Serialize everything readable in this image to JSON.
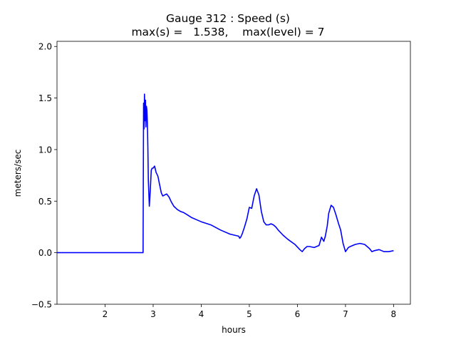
{
  "chart_data": {
    "type": "line",
    "title_line1": "Gauge 312 : Speed (s)",
    "title_line2": "max(s) =   1.538,    max(level) = 7",
    "xlabel": "hours",
    "ylabel": "meters/sec",
    "xlim": [
      1.0,
      8.35
    ],
    "ylim": [
      -0.5,
      2.05
    ],
    "xticks": [
      2,
      3,
      4,
      5,
      6,
      7,
      8
    ],
    "yticks": [
      -0.5,
      0.0,
      0.5,
      1.0,
      1.5,
      2.0
    ],
    "ytick_labels": [
      "−0.5",
      "0.0",
      "0.5",
      "1.0",
      "1.5",
      "2.0"
    ],
    "grid": false,
    "series": [
      {
        "color": "#0000ff",
        "x": [
          1.0,
          2.79,
          2.8,
          2.81,
          2.82,
          2.83,
          2.84,
          2.85,
          2.86,
          2.87,
          2.88,
          2.89,
          2.9,
          2.92,
          2.94,
          2.96,
          2.98,
          3.0,
          3.03,
          3.06,
          3.08,
          3.1,
          3.13,
          3.17,
          3.2,
          3.24,
          3.28,
          3.33,
          3.38,
          3.43,
          3.5,
          3.57,
          3.63,
          3.7,
          3.8,
          3.9,
          4.0,
          4.2,
          4.4,
          4.6,
          4.78,
          4.8,
          4.82,
          4.85,
          4.9,
          4.95,
          5.0,
          5.05,
          5.1,
          5.15,
          5.2,
          5.25,
          5.3,
          5.35,
          5.4,
          5.45,
          5.5,
          5.55,
          5.6,
          5.7,
          5.8,
          5.95,
          6.05,
          6.1,
          6.15,
          6.2,
          6.25,
          6.35,
          6.45,
          6.5,
          6.55,
          6.58,
          6.62,
          6.65,
          6.7,
          6.75,
          6.8,
          6.85,
          6.9,
          6.95,
          7.0,
          7.03,
          7.06,
          7.1,
          7.2,
          7.3,
          7.4,
          7.5,
          7.55,
          7.6,
          7.7,
          7.8,
          7.9,
          8.0
        ],
        "y": [
          0.0,
          0.0,
          1.45,
          1.2,
          1.538,
          1.28,
          1.48,
          1.22,
          1.42,
          1.38,
          1.25,
          1.03,
          0.7,
          0.45,
          0.6,
          0.8,
          0.82,
          0.82,
          0.84,
          0.78,
          0.76,
          0.74,
          0.67,
          0.58,
          0.55,
          0.56,
          0.57,
          0.54,
          0.49,
          0.45,
          0.42,
          0.4,
          0.39,
          0.37,
          0.34,
          0.32,
          0.3,
          0.27,
          0.22,
          0.18,
          0.16,
          0.14,
          0.15,
          0.18,
          0.25,
          0.33,
          0.44,
          0.43,
          0.55,
          0.62,
          0.56,
          0.4,
          0.3,
          0.27,
          0.27,
          0.28,
          0.27,
          0.25,
          0.22,
          0.17,
          0.13,
          0.08,
          0.03,
          0.01,
          0.04,
          0.06,
          0.06,
          0.05,
          0.07,
          0.15,
          0.11,
          0.16,
          0.26,
          0.38,
          0.46,
          0.44,
          0.37,
          0.29,
          0.22,
          0.09,
          0.01,
          0.03,
          0.05,
          0.06,
          0.08,
          0.09,
          0.08,
          0.04,
          0.01,
          0.02,
          0.03,
          0.01,
          0.01,
          0.02
        ]
      }
    ]
  }
}
